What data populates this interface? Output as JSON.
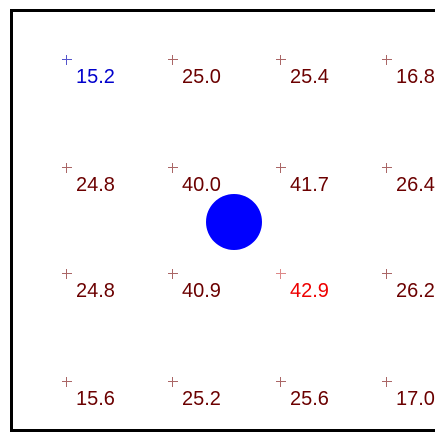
{
  "grid": {
    "rows": [
      {
        "cells": [
          {
            "value": "15.2",
            "color": "#0000cc",
            "cross_color": "#5555cc"
          },
          {
            "value": "25.0",
            "color": "#6b0000",
            "cross_color": "#aa6666"
          },
          {
            "value": "25.4",
            "color": "#6b0000",
            "cross_color": "#aa6666"
          },
          {
            "value": "16.8",
            "color": "#6b0000",
            "cross_color": "#aa6666"
          }
        ]
      },
      {
        "cells": [
          {
            "value": "24.8",
            "color": "#6b0000",
            "cross_color": "#aa6666"
          },
          {
            "value": "40.0",
            "color": "#6b0000",
            "cross_color": "#aa6666"
          },
          {
            "value": "41.7",
            "color": "#6b0000",
            "cross_color": "#aa6666"
          },
          {
            "value": "26.4",
            "color": "#6b0000",
            "cross_color": "#aa6666"
          }
        ]
      },
      {
        "cells": [
          {
            "value": "24.8",
            "color": "#6b0000",
            "cross_color": "#aa6666"
          },
          {
            "value": "40.9",
            "color": "#6b0000",
            "cross_color": "#aa6666"
          },
          {
            "value": "42.9",
            "color": "#ee0000",
            "cross_color": "#dd8888"
          },
          {
            "value": "26.2",
            "color": "#6b0000",
            "cross_color": "#aa6666"
          }
        ]
      },
      {
        "cells": [
          {
            "value": "15.6",
            "color": "#6b0000",
            "cross_color": "#aa6666"
          },
          {
            "value": "25.2",
            "color": "#6b0000",
            "cross_color": "#aa6666"
          },
          {
            "value": "25.6",
            "color": "#6b0000",
            "cross_color": "#aa6666"
          },
          {
            "value": "17.0",
            "color": "#6b0000",
            "cross_color": "#aa6666"
          }
        ]
      }
    ]
  },
  "marker": {
    "color": "#0000ff"
  },
  "frame": {
    "border_color": "#000000"
  }
}
